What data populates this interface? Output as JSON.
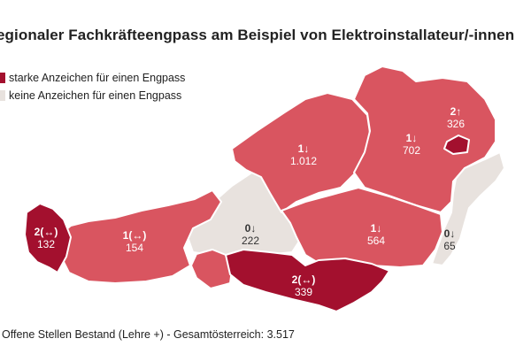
{
  "title": "egionaler Fachkräfteengpass am Beispiel von Elektroinstallateur/-innen",
  "legend": [
    {
      "label": "starke Anzeichen für einen Engpass"
    },
    {
      "label": "keine Anzeichen für einen Engpass"
    }
  ],
  "colors": {
    "strong": "#a3102e",
    "medium": "#d95560",
    "none": "#e8e2de",
    "border": "#ffffff"
  },
  "regions": [
    {
      "id": "vorarlberg",
      "level": "2(↔)",
      "count": "132",
      "shade": "strong"
    },
    {
      "id": "tirol",
      "level": "1(↔)",
      "count": "154",
      "shade": "medium"
    },
    {
      "id": "salzburg",
      "level": "0↓",
      "count": "222",
      "shade": "none"
    },
    {
      "id": "oberoesterreich",
      "level": "1↓",
      "count": "1.012",
      "shade": "medium"
    },
    {
      "id": "niederoesterreich",
      "level": "1↓",
      "count": "702",
      "shade": "medium"
    },
    {
      "id": "wien",
      "level": "2↑",
      "count": "326",
      "shade": "strong"
    },
    {
      "id": "steiermark",
      "level": "1↓",
      "count": "564",
      "shade": "medium"
    },
    {
      "id": "burgenland",
      "level": "0↓",
      "count": "65",
      "shade": "none"
    },
    {
      "id": "kaernten",
      "level": "2(↔)",
      "count": "339",
      "shade": "strong"
    }
  ],
  "footer": "Offene Stellen Bestand (Lehre +) - Gesamtösterreich: 3.517"
}
